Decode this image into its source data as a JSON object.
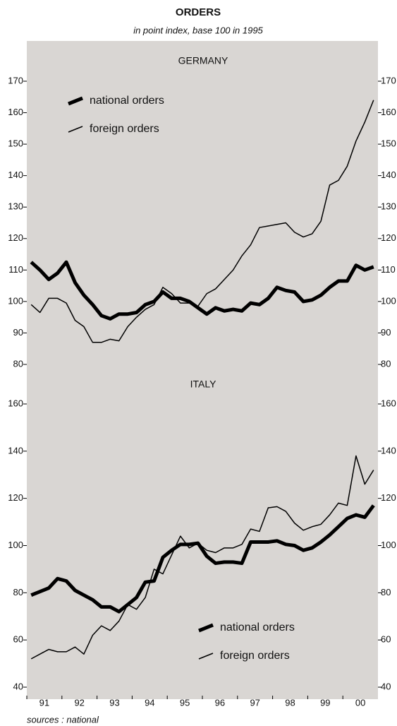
{
  "title": "ORDERS",
  "subtitle": "in point index, base 100 in 1995",
  "source": "sources : national",
  "chart_data": [
    {
      "type": "line",
      "title": "GERMANY",
      "categories": [
        "91",
        null,
        null,
        null,
        "92",
        null,
        null,
        null,
        "93",
        null,
        null,
        null,
        "94",
        null,
        null,
        null,
        "95",
        null,
        null,
        null,
        "96",
        null,
        null,
        null,
        "97",
        null,
        null,
        null,
        "98",
        null,
        null,
        null,
        "99",
        null,
        null,
        null,
        "00",
        null,
        null,
        null
      ],
      "series": [
        {
          "name": "national orders",
          "color": "#000000",
          "values": [
            112.5,
            110,
            107,
            109,
            112.5,
            106,
            102,
            99,
            95.5,
            94.5,
            96,
            96,
            96.5,
            99,
            100,
            103,
            101,
            101,
            100,
            98,
            96,
            98,
            97,
            97.5,
            97,
            99.5,
            99,
            101,
            104.5,
            103.5,
            103,
            100,
            100.5,
            102,
            104.5,
            106.5,
            106.5,
            111.5,
            110,
            111
          ]
        },
        {
          "name": "foreign orders",
          "color": "#000000",
          "values": [
            99,
            96.5,
            101,
            101,
            99.5,
            94,
            92,
            87,
            87,
            88,
            87.5,
            92,
            95,
            97.5,
            99,
            104.5,
            102.5,
            99.5,
            99.5,
            98.5,
            102.5,
            104,
            107,
            110,
            114.5,
            118,
            123.5,
            124,
            124.5,
            125,
            122,
            120.5,
            121.5,
            125.5,
            137,
            138.5,
            143,
            151,
            157,
            164
          ]
        }
      ],
      "ylim": [
        80,
        170
      ],
      "yticks": [
        80,
        90,
        100,
        110,
        120,
        130,
        140,
        150,
        160,
        170
      ],
      "legend": "upper left",
      "background": "#d9d6d3"
    },
    {
      "type": "line",
      "title": "ITALY",
      "categories": [
        "91",
        null,
        null,
        null,
        "92",
        null,
        null,
        null,
        "93",
        null,
        null,
        null,
        "94",
        null,
        null,
        null,
        "95",
        null,
        null,
        null,
        "96",
        null,
        null,
        null,
        "97",
        null,
        null,
        null,
        "98",
        null,
        null,
        null,
        "99",
        null,
        null,
        null,
        "00",
        null,
        null,
        null
      ],
      "series": [
        {
          "name": "national orders",
          "color": "#000000",
          "values": [
            79,
            80.5,
            82,
            86,
            85,
            81,
            79,
            77,
            74,
            74,
            72,
            75,
            78,
            84.5,
            85,
            95,
            98,
            100.5,
            100.5,
            101,
            95.5,
            92.5,
            93,
            93,
            92.5,
            101.5,
            101.5,
            101.5,
            102,
            100.5,
            100,
            98,
            99,
            101.5,
            104.5,
            108,
            111.5,
            113,
            112,
            117
          ]
        },
        {
          "name": "foreign orders",
          "color": "#000000",
          "values": [
            52,
            54,
            56,
            55,
            55,
            57,
            54,
            62,
            66,
            64,
            68,
            75,
            73,
            78,
            90,
            88,
            96,
            104,
            99,
            101,
            98,
            97,
            99,
            99,
            100.5,
            107,
            106,
            116,
            116.5,
            114.5,
            109.5,
            106.5,
            108,
            109,
            113,
            118,
            117,
            138,
            126,
            132
          ]
        }
      ],
      "ylim": [
        40,
        160
      ],
      "yticks": [
        40,
        60,
        80,
        100,
        120,
        140,
        160
      ],
      "legend": "lower right",
      "background": "#d9d6d3"
    }
  ]
}
